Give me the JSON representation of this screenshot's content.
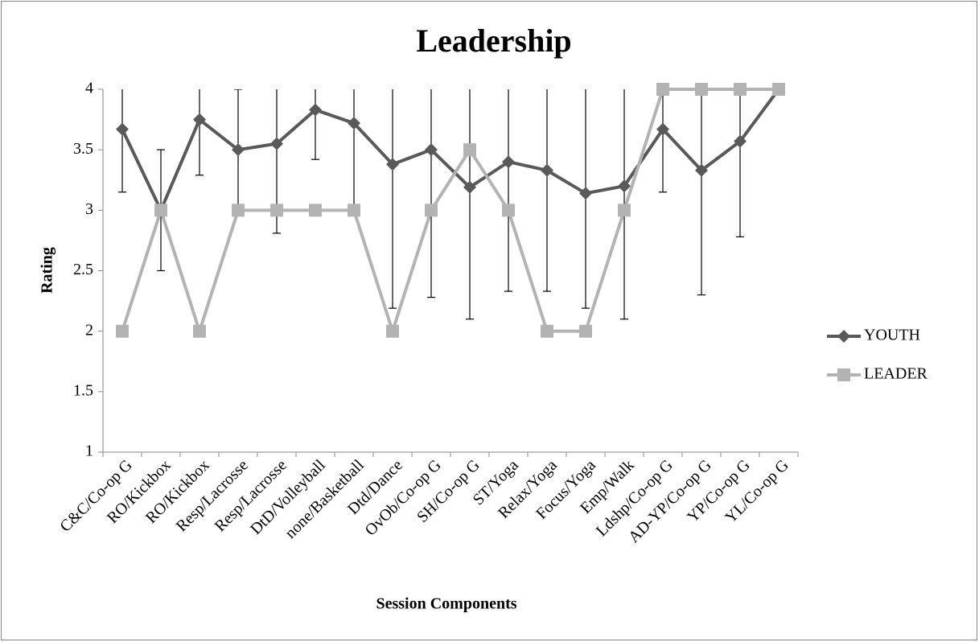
{
  "chart_data": {
    "type": "line",
    "title": "Leadership",
    "x_label": "Session Components",
    "y_label": "Rating",
    "categories": [
      "C&C/Co-op G",
      "RO/Kickbox",
      "RO/Kickbox",
      "Resp/Lacrosse",
      "Resp/Lacrosse",
      "DtD/Volleyball",
      "none/Basketball",
      "Dtd/Dance",
      "OvOb/Co-op G",
      "SH/Co-op G",
      "ST/Yoga",
      "Relax/Yoga",
      "Focus/Yoga",
      "Emp/Walk",
      "Ldshp/Co-op G",
      "AD-YP/Co-op G",
      "YP/Co-op G",
      "YL/Co-op G"
    ],
    "series": [
      {
        "name": "YOUTH",
        "color": "#595959",
        "marker": "diamond",
        "values": [
          3.67,
          3.0,
          3.75,
          3.5,
          3.55,
          3.83,
          3.72,
          3.38,
          3.5,
          3.19,
          3.4,
          3.33,
          3.14,
          3.2,
          3.67,
          3.33,
          3.57,
          4.0
        ],
        "errors": [
          0.52,
          0.5,
          0.46,
          0.5,
          0.74,
          0.41,
          0.71,
          1.19,
          1.22,
          1.09,
          1.07,
          1.0,
          0.95,
          1.1,
          0.52,
          1.03,
          0.79,
          0
        ]
      },
      {
        "name": "LEADER",
        "color": "#b3b3b3",
        "marker": "square",
        "values": [
          2,
          3,
          2,
          3,
          3,
          3,
          3,
          2,
          3,
          3.5,
          3,
          2,
          2,
          3,
          4,
          4,
          4,
          4
        ]
      }
    ],
    "ylim": [
      1,
      4
    ],
    "yticks": [
      1,
      1.5,
      2,
      2.5,
      3,
      3.5,
      4
    ],
    "grid": false,
    "legend": "right"
  }
}
